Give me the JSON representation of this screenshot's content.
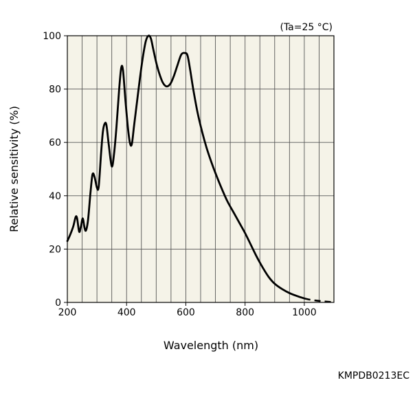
{
  "chart_data": {
    "type": "line",
    "annotation": "(Ta=25 °C)",
    "figure_code": "KMPDB0213EC",
    "xlabel": "Wavelength (nm)",
    "ylabel": "Relative sensitivity (%)",
    "xlim": [
      200,
      1100
    ],
    "ylim": [
      0,
      100
    ],
    "xticks": [
      200,
      400,
      600,
      800,
      1000
    ],
    "yticks": [
      0,
      20,
      40,
      60,
      80,
      100
    ],
    "grid": true,
    "plot_background": "#f5f3e8",
    "line_color": "#000000",
    "series": [
      {
        "values_solid": [
          [
            200,
            23
          ],
          [
            210,
            25.5
          ],
          [
            220,
            28.5
          ],
          [
            228,
            32
          ],
          [
            233,
            31.5
          ],
          [
            240,
            26.5
          ],
          [
            246,
            28.5
          ],
          [
            252,
            31.5
          ],
          [
            258,
            28
          ],
          [
            263,
            27
          ],
          [
            270,
            31
          ],
          [
            278,
            41
          ],
          [
            285,
            48
          ],
          [
            292,
            47
          ],
          [
            300,
            43
          ],
          [
            306,
            43.5
          ],
          [
            314,
            56
          ],
          [
            320,
            64
          ],
          [
            326,
            67
          ],
          [
            332,
            66.5
          ],
          [
            340,
            59
          ],
          [
            350,
            51
          ],
          [
            358,
            56
          ],
          [
            366,
            66
          ],
          [
            375,
            80
          ],
          [
            382,
            88
          ],
          [
            388,
            87
          ],
          [
            396,
            76
          ],
          [
            405,
            65
          ],
          [
            412,
            59.5
          ],
          [
            418,
            59.5
          ],
          [
            425,
            66
          ],
          [
            435,
            75
          ],
          [
            445,
            84
          ],
          [
            455,
            92
          ],
          [
            465,
            98
          ],
          [
            474,
            100
          ],
          [
            482,
            99
          ],
          [
            490,
            95
          ],
          [
            500,
            90
          ],
          [
            510,
            86
          ],
          [
            522,
            82.5
          ],
          [
            535,
            81
          ],
          [
            548,
            82
          ],
          [
            560,
            85
          ],
          [
            572,
            89
          ],
          [
            585,
            93
          ],
          [
            598,
            93.5
          ],
          [
            606,
            92.5
          ],
          [
            615,
            87
          ],
          [
            625,
            80
          ],
          [
            640,
            71
          ],
          [
            655,
            64
          ],
          [
            670,
            58
          ],
          [
            685,
            53
          ],
          [
            700,
            48.5
          ],
          [
            720,
            43
          ],
          [
            740,
            38
          ],
          [
            760,
            34
          ],
          [
            780,
            30
          ],
          [
            800,
            26
          ],
          [
            820,
            21.5
          ],
          [
            840,
            17
          ],
          [
            860,
            13
          ],
          [
            880,
            9.5
          ],
          [
            900,
            7
          ],
          [
            925,
            5
          ],
          [
            950,
            3.5
          ],
          [
            975,
            2.4
          ],
          [
            1000,
            1.5
          ]
        ],
        "values_dashed": [
          [
            1000,
            1.5
          ],
          [
            1020,
            1.0
          ],
          [
            1040,
            0.7
          ],
          [
            1060,
            0.45
          ],
          [
            1080,
            0.25
          ],
          [
            1100,
            0.1
          ]
        ]
      }
    ]
  }
}
